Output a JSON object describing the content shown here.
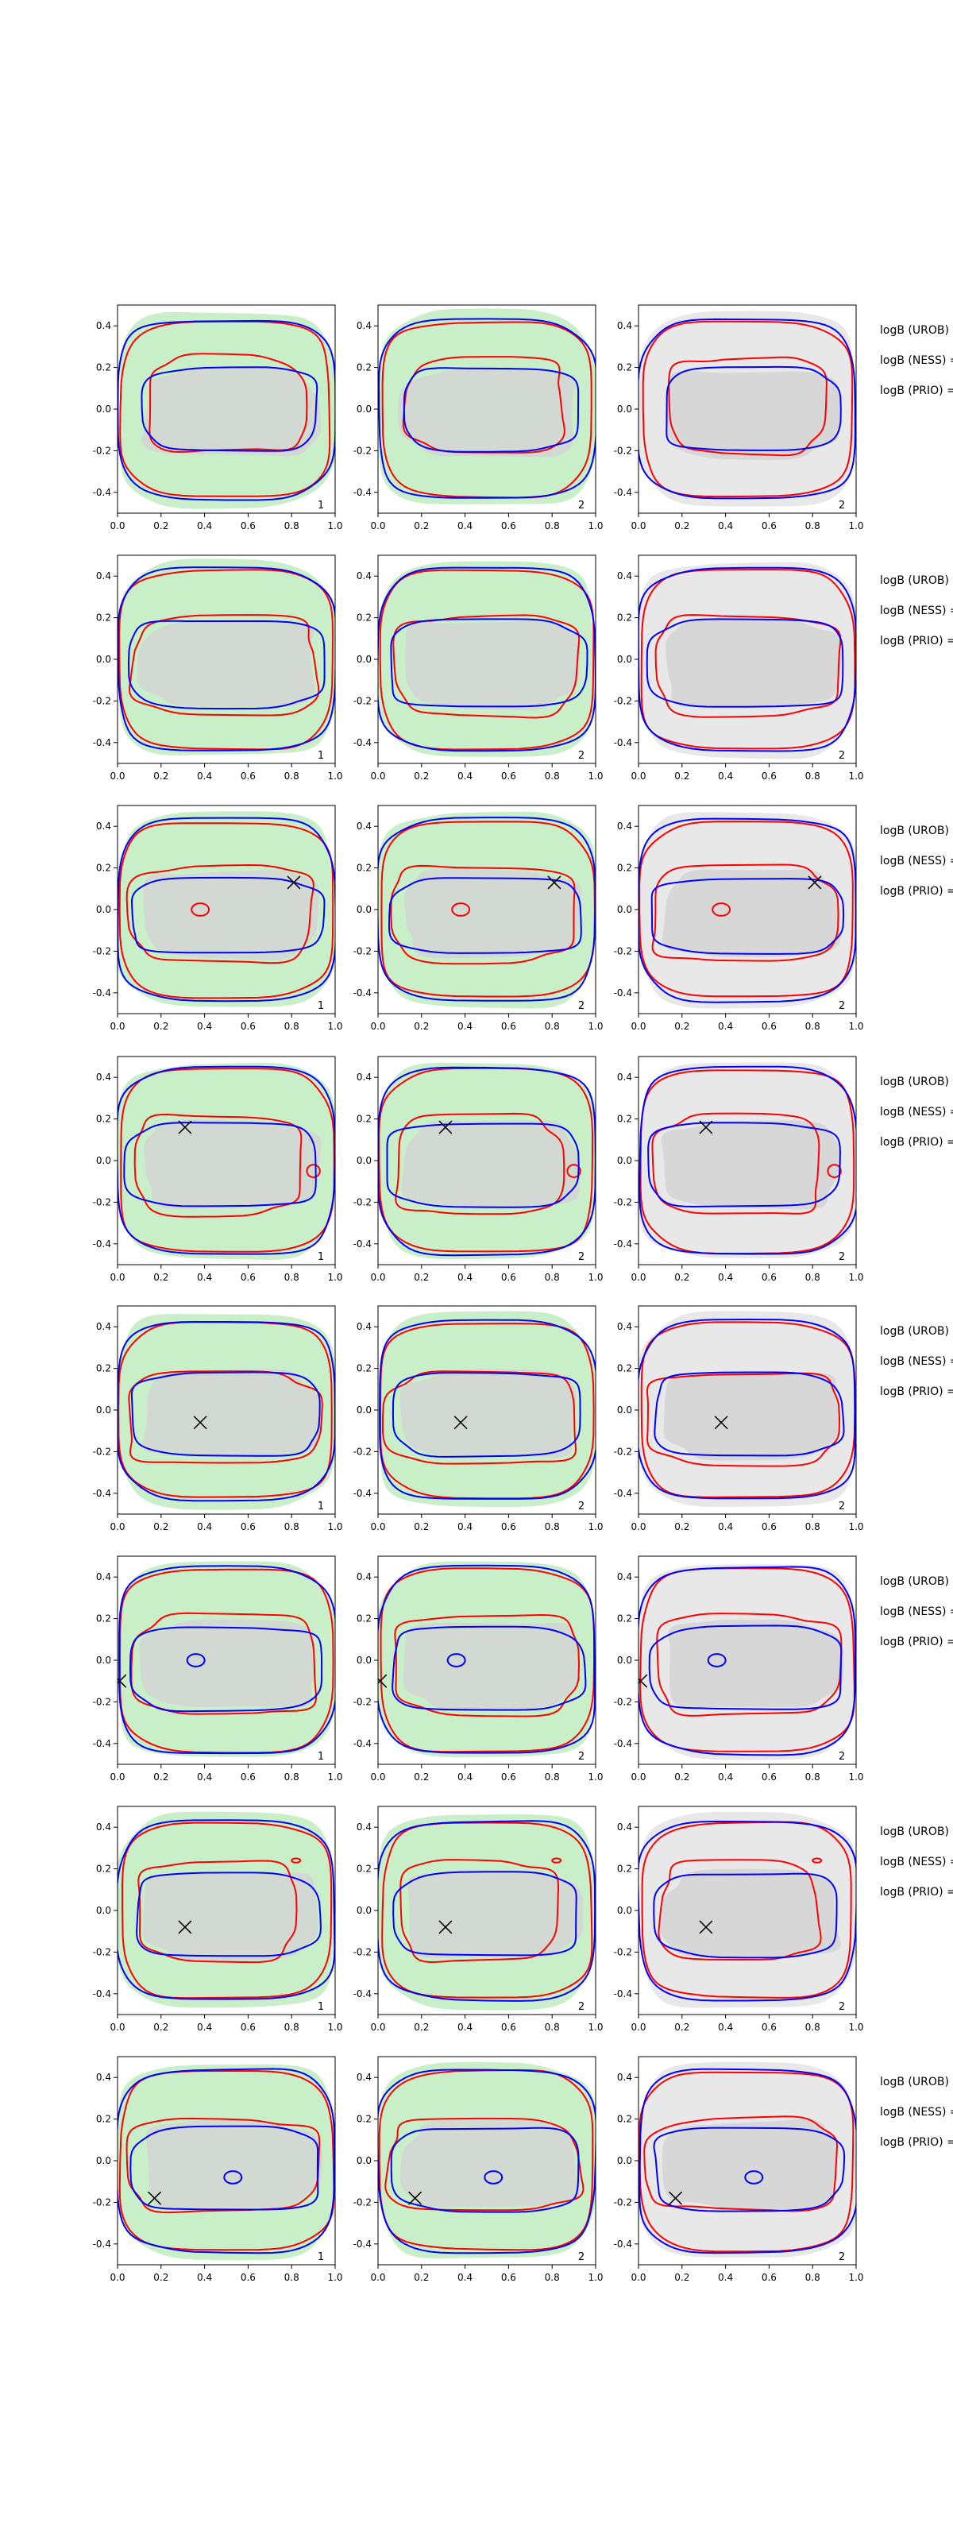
{
  "figure": {
    "colors": {
      "green_fill": "#c9efc9",
      "gray_fill": "#e8e8e8",
      "inner_gray": "#d3d3d3",
      "red_contour": "#ff0000",
      "blue_contour": "#0000ff",
      "marker": "#000000",
      "axis": "#000000"
    },
    "icons": {
      "marker": "x-marker-icon"
    },
    "side_labels": [
      "logB (UROB) =",
      "logB (NESS) =",
      "logB (PRIO) ="
    ]
  },
  "chart_data": {
    "type": "contour",
    "layout": "8 rows x 3 columns grid of contour panels",
    "shared_axes": {
      "xlim": [
        0.0,
        1.0
      ],
      "ylim": [
        -0.5,
        0.5
      ],
      "xticks": [
        0.0,
        0.2,
        0.4,
        0.6,
        0.8,
        1.0
      ],
      "xtick_labels": [
        "0.0",
        "0.2",
        "0.4",
        "0.6",
        "0.8",
        "1.0"
      ],
      "yticks": [
        -0.4,
        -0.2,
        0.0,
        0.2,
        0.4
      ],
      "ytick_labels": [
        "-0.4",
        "-0.2",
        "0.0",
        "0.2",
        "0.4"
      ],
      "grid": false
    },
    "columns": [
      {
        "index": 0,
        "background": "green",
        "corner_label": "1"
      },
      {
        "index": 1,
        "background": "green",
        "corner_label": "2"
      },
      {
        "index": 2,
        "background": "gray",
        "corner_label": "2"
      }
    ],
    "rows": [
      {
        "row": 1,
        "marker": null,
        "red": {
          "outer_half": [
            0.48,
            0.42
          ],
          "inner_half": [
            0.36,
            0.23
          ],
          "inner_center": [
            0.5,
            0.02
          ],
          "extra_loops": []
        },
        "blue": {
          "outer_half": [
            0.5,
            0.43
          ],
          "inner_half": [
            0.4,
            0.2
          ],
          "inner_center": [
            0.52,
            0.0
          ],
          "extra_loops": []
        }
      },
      {
        "row": 2,
        "marker": null,
        "red": {
          "outer_half": [
            0.49,
            0.43
          ],
          "inner_half": [
            0.42,
            0.24
          ],
          "inner_center": [
            0.5,
            -0.03
          ],
          "extra_loops": []
        },
        "blue": {
          "outer_half": [
            0.5,
            0.44
          ],
          "inner_half": [
            0.45,
            0.21
          ],
          "inner_center": [
            0.5,
            -0.02
          ],
          "extra_loops": []
        }
      },
      {
        "row": 3,
        "marker": [
          0.81,
          0.13
        ],
        "red": {
          "outer_half": [
            0.49,
            0.42
          ],
          "inner_half": [
            0.42,
            0.23
          ],
          "inner_center": [
            0.48,
            -0.02
          ],
          "extra_loops": [
            [
              0.38,
              0.0,
              0.04,
              0.03
            ]
          ]
        },
        "blue": {
          "outer_half": [
            0.5,
            0.44
          ],
          "inner_half": [
            0.44,
            0.18
          ],
          "inner_center": [
            0.5,
            -0.03
          ],
          "extra_loops": []
        }
      },
      {
        "row": 4,
        "marker": [
          0.31,
          0.16
        ],
        "red": {
          "outer_half": [
            0.49,
            0.44
          ],
          "inner_half": [
            0.38,
            0.24
          ],
          "inner_center": [
            0.46,
            -0.02
          ],
          "extra_loops": [
            [
              0.9,
              -0.05,
              0.03,
              0.03
            ]
          ]
        },
        "blue": {
          "outer_half": [
            0.5,
            0.45
          ],
          "inner_half": [
            0.44,
            0.2
          ],
          "inner_center": [
            0.48,
            -0.02
          ],
          "extra_loops": []
        }
      },
      {
        "row": 5,
        "marker": [
          0.38,
          -0.06
        ],
        "red": {
          "outer_half": [
            0.49,
            0.42
          ],
          "inner_half": [
            0.44,
            0.22
          ],
          "inner_center": [
            0.48,
            -0.04
          ],
          "extra_loops": []
        },
        "blue": {
          "outer_half": [
            0.5,
            0.43
          ],
          "inner_half": [
            0.43,
            0.2
          ],
          "inner_center": [
            0.5,
            -0.02
          ],
          "extra_loops": []
        }
      },
      {
        "row": 6,
        "marker": [
          0.01,
          -0.1
        ],
        "red": {
          "outer_half": [
            0.49,
            0.44
          ],
          "inner_half": [
            0.42,
            0.24
          ],
          "inner_center": [
            0.5,
            -0.02
          ],
          "extra_loops": []
        },
        "blue": {
          "outer_half": [
            0.5,
            0.45
          ],
          "inner_half": [
            0.44,
            0.2
          ],
          "inner_center": [
            0.5,
            -0.04
          ],
          "extra_loops": [
            [
              0.36,
              0.0,
              0.04,
              0.03
            ]
          ]
        }
      },
      {
        "row": 7,
        "marker": [
          0.31,
          -0.08
        ],
        "red": {
          "outer_half": [
            0.48,
            0.42
          ],
          "inner_half": [
            0.36,
            0.24
          ],
          "inner_center": [
            0.46,
            0.0
          ],
          "extra_loops": [
            [
              0.82,
              0.24,
              0.02,
              0.01
            ]
          ]
        },
        "blue": {
          "outer_half": [
            0.5,
            0.43
          ],
          "inner_half": [
            0.42,
            0.2
          ],
          "inner_center": [
            0.5,
            -0.02
          ],
          "extra_loops": []
        }
      },
      {
        "row": 8,
        "marker": [
          0.17,
          -0.18
        ],
        "red": {
          "outer_half": [
            0.49,
            0.43
          ],
          "inner_half": [
            0.44,
            0.22
          ],
          "inner_center": [
            0.48,
            -0.02
          ],
          "extra_loops": []
        },
        "blue": {
          "outer_half": [
            0.5,
            0.44
          ],
          "inner_half": [
            0.43,
            0.2
          ],
          "inner_center": [
            0.5,
            -0.04
          ],
          "extra_loops": [
            [
              0.53,
              -0.08,
              0.04,
              0.03
            ]
          ]
        }
      }
    ]
  }
}
